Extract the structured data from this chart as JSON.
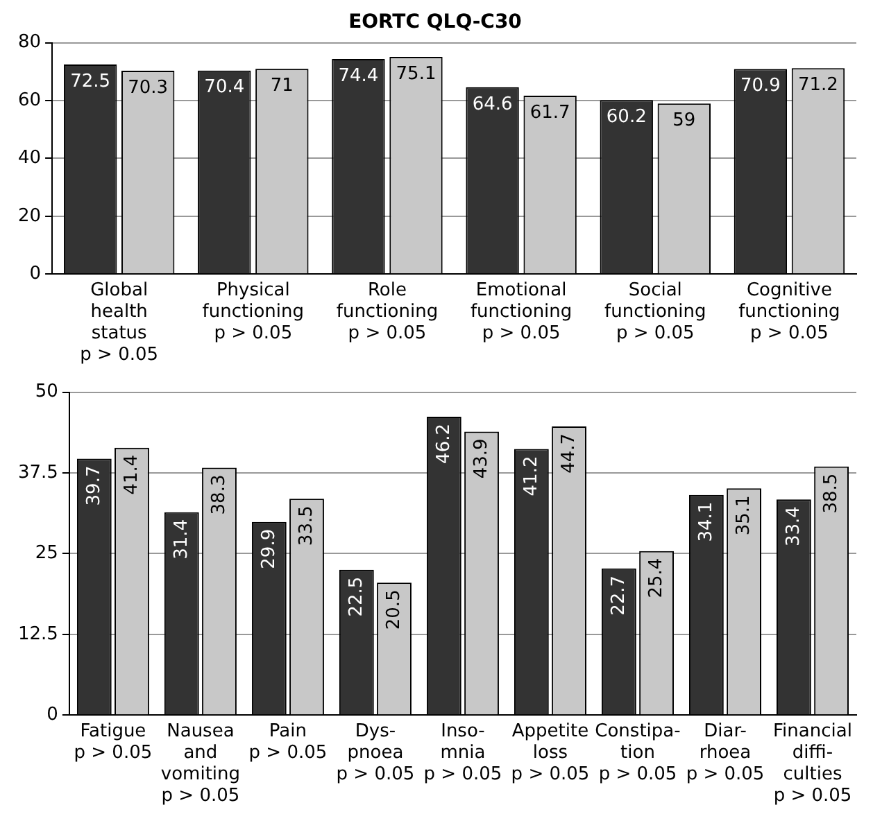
{
  "chart_data": [
    {
      "type": "bar",
      "title": "EORTC QLQ-C30",
      "categories": [
        "Global\nhealth\nstatus\np > 0.05",
        "Physical\nfunctioning\np > 0.05",
        "Role\nfunctioning\np > 0.05",
        "Emotional\nfunctioning\np > 0.05",
        "Social\nfunctioning\np > 0.05",
        "Cognitive\nfunctioning\np > 0.05"
      ],
      "series": [
        {
          "color": "#333333",
          "values": [
            72.5,
            70.4,
            74.4,
            64.6,
            60.2,
            70.9
          ]
        },
        {
          "color": "#c8c8c8",
          "values": [
            70.3,
            71,
            75.1,
            61.7,
            59,
            71.2
          ]
        }
      ],
      "ylim": [
        0,
        80
      ],
      "yticks": [
        0,
        20,
        40,
        60,
        80
      ],
      "grid": "y",
      "legend": false,
      "data_labels": true
    },
    {
      "type": "bar",
      "categories": [
        "Fatigue\np > 0.05",
        "Nausea\nand\nvomiting\np > 0.05",
        "Pain\np > 0.05",
        "Dys-\npnoea\np > 0.05",
        "Inso-\nmnia\np > 0.05",
        "Appetite\nloss\np > 0.05",
        "Constipa-\ntion\np > 0.05",
        "Diar-\nrhoea\np > 0.05",
        "Financial\ndiffi-\nculties\np > 0.05"
      ],
      "series": [
        {
          "color": "#333333",
          "values": [
            39.7,
            31.4,
            29.9,
            22.5,
            46.2,
            41.2,
            22.7,
            34.1,
            33.4
          ]
        },
        {
          "color": "#c8c8c8",
          "values": [
            41.4,
            38.3,
            33.5,
            20.5,
            43.9,
            44.7,
            25.4,
            35.1,
            38.5
          ]
        }
      ],
      "ylim": [
        0,
        50
      ],
      "yticks": [
        0,
        12.5,
        25,
        37.5,
        50
      ],
      "grid": "y",
      "legend": false,
      "data_labels": true
    }
  ]
}
